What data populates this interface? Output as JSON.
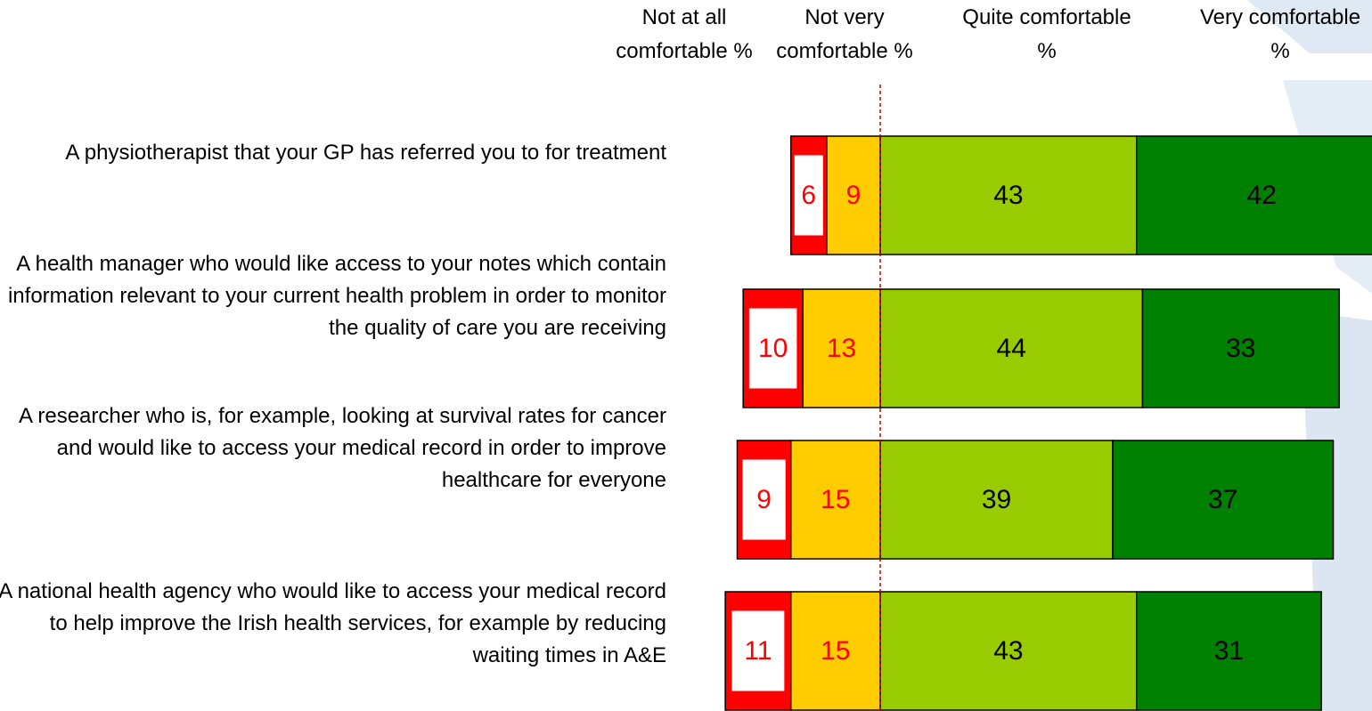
{
  "chart_data": {
    "type": "diverging-bar",
    "categories": [
      "A physiotherapist that your GP has referred you to for treatment",
      "A health manager who would like access to your notes which contain information relevant to your current health problem in order to monitor the quality of care you are receiving",
      "A researcher who is, for example, looking at survival rates for cancer and would like to access your medical record in order to improve healthcare for everyone",
      "A national health agency who would like to access your medical record to help improve the Irish health services, for example by reducing waiting times in A&E"
    ],
    "series": [
      {
        "name": "Not at all comfortable %",
        "color": "#ff0000",
        "side": "negative",
        "values": [
          6,
          10,
          9,
          11
        ]
      },
      {
        "name": "Not very comfortable %",
        "color": "#ffcc00",
        "side": "negative",
        "values": [
          9,
          13,
          15,
          15
        ]
      },
      {
        "name": "Quite comfortable %",
        "color": "#99cc00",
        "side": "positive",
        "values": [
          43,
          44,
          39,
          43
        ]
      },
      {
        "name": "Very comfortable %",
        "color": "#008000",
        "side": "positive",
        "values": [
          42,
          33,
          37,
          31
        ]
      }
    ],
    "xlim": [
      -27.6,
      82.5
    ]
  }
}
